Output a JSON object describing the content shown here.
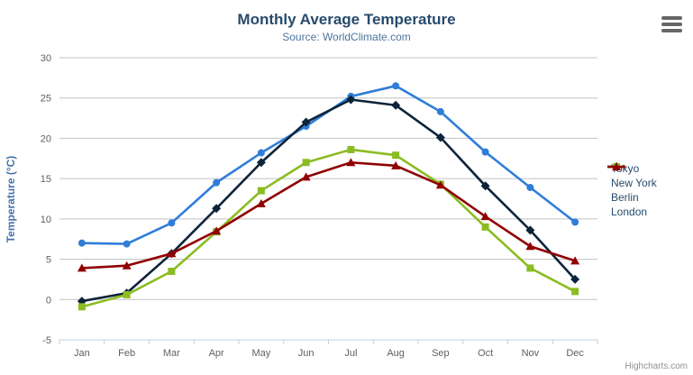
{
  "chart_data": {
    "type": "line",
    "title": "Monthly Average Temperature",
    "subtitle": "Source: WorldClimate.com",
    "xlabel": "",
    "ylabel": "Temperature (°C)",
    "ylim": [
      -5,
      30
    ],
    "ytick_step": 5,
    "grid": true,
    "legend_position": "right",
    "categories": [
      "Jan",
      "Feb",
      "Mar",
      "Apr",
      "May",
      "Jun",
      "Jul",
      "Aug",
      "Sep",
      "Oct",
      "Nov",
      "Dec"
    ],
    "series": [
      {
        "name": "Tokyo",
        "color": "#2f7ed8",
        "marker": "circle",
        "values": [
          7.0,
          6.9,
          9.5,
          14.5,
          18.2,
          21.5,
          25.2,
          26.5,
          23.3,
          18.3,
          13.9,
          9.6
        ]
      },
      {
        "name": "New York",
        "color": "#0d233a",
        "marker": "diamond",
        "values": [
          -0.2,
          0.8,
          5.7,
          11.3,
          17.0,
          22.0,
          24.8,
          24.1,
          20.1,
          14.1,
          8.6,
          2.5
        ]
      },
      {
        "name": "Berlin",
        "color": "#8bbc21",
        "marker": "square",
        "values": [
          -0.9,
          0.6,
          3.5,
          8.4,
          13.5,
          17.0,
          18.6,
          17.9,
          14.3,
          9.0,
          3.9,
          1.0
        ]
      },
      {
        "name": "London",
        "color": "#910000",
        "marker": "triangle",
        "values": [
          3.9,
          4.2,
          5.7,
          8.5,
          11.9,
          15.2,
          17.0,
          16.6,
          14.2,
          10.3,
          6.6,
          4.8
        ]
      }
    ]
  },
  "credits": "Highcharts.com",
  "icons": {
    "menu": "hamburger-icon"
  },
  "colors": {
    "title": "#274b6d",
    "subtitle": "#4d759e",
    "yaxis_title": "#4572a7",
    "axis_label": "#606060",
    "grid_line": "#c0c0c0",
    "axis_line": "#c0d0e0",
    "legend_text": "#274b6d",
    "credits_text": "#909090",
    "menu_icon": "#666666"
  }
}
